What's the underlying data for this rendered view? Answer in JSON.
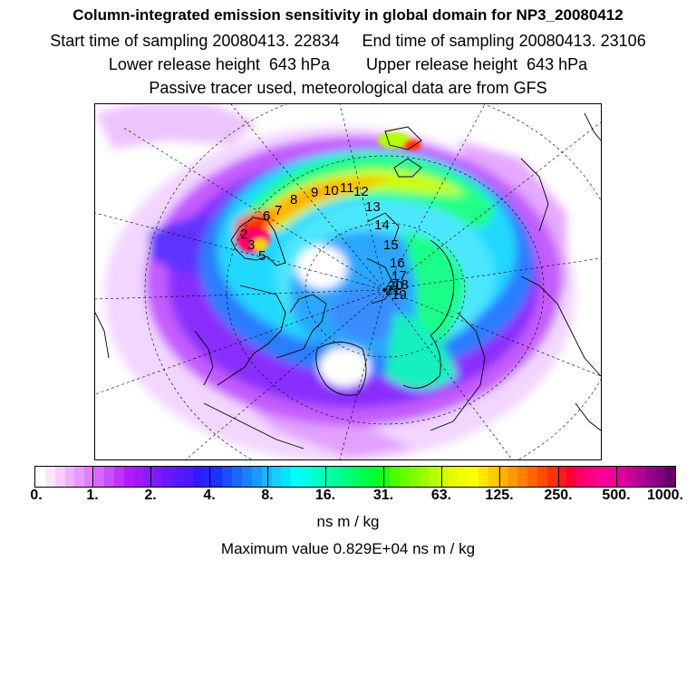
{
  "header": {
    "title": "Column-integrated emission sensitivity in global domain for NP3_20080412",
    "line2": "Start time of sampling 20080413. 22834     End time of sampling 20080413. 23106",
    "line3": "Lower release height  643 hPa        Upper release height  643 hPa",
    "line4": "Passive tracer used, meteorological data are from GFS"
  },
  "colorbar": {
    "tick_labels": [
      "0.",
      "1.",
      "2.",
      "4.",
      "8.",
      "16.",
      "31.",
      "63.",
      "125.",
      "250.",
      "500.",
      "1000."
    ],
    "colors": [
      "#ffffff",
      "#fbe6ff",
      "#f6ccff",
      "#f0b3ff",
      "#eb99ff",
      "#e080ff",
      "#d966ff",
      "#cc4dff",
      "#bf33ff",
      "#b31aff",
      "#a319ff",
      "#8c1aff",
      "#7a1aff",
      "#661aff",
      "#5a1aff",
      "#4d1aff",
      "#3319ff",
      "#2626ff",
      "#1a33ff",
      "#1a4dff",
      "#1a66ff",
      "#1a80ff",
      "#1a99ff",
      "#1ab3ff",
      "#1acdff",
      "#00e6ff",
      "#00ffff",
      "#00ffe6",
      "#00ffcc",
      "#00ffb3",
      "#00ff99",
      "#00ff80",
      "#00ff66",
      "#00ff4d",
      "#00ff33",
      "#1aff1a",
      "#4dff00",
      "#66ff00",
      "#80ff00",
      "#99ff00",
      "#b3ff00",
      "#ccff00",
      "#e6ff00",
      "#f2ff00",
      "#ffff00",
      "#ffe600",
      "#ffcc00",
      "#ffb300",
      "#ff9900",
      "#ff8000",
      "#ff6600",
      "#ff4d00",
      "#ff3300",
      "#ff1a1a",
      "#ff0033",
      "#ff0066",
      "#ff0080",
      "#ff0099",
      "#f00099",
      "#e0009e",
      "#cc0099",
      "#b30099",
      "#99008c",
      "#800080",
      "#660066"
    ],
    "unit": "ns m / kg",
    "max_value": "Maximum value  0.829E+04 ns m / kg"
  },
  "map": {
    "track_labels": [
      "2",
      "3",
      "5",
      "6",
      "7",
      "8",
      "9",
      "10",
      "11",
      "12",
      "13",
      "14",
      "15",
      "16",
      "17",
      "18",
      "19",
      "20",
      "21"
    ]
  }
}
